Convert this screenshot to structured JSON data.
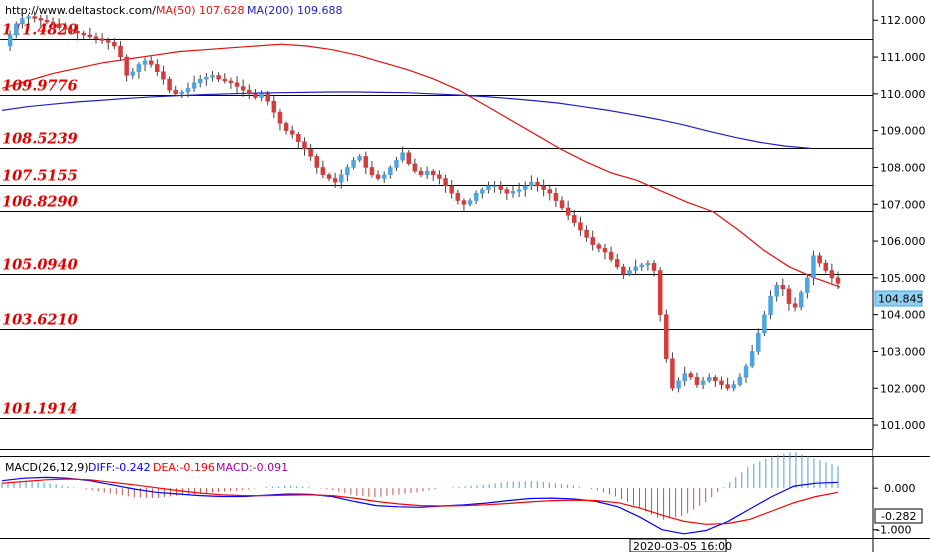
{
  "source_url": "http://www.deltastock.com/",
  "indicators": {
    "ma50_label": "MA(50)",
    "ma50_value": "107.628",
    "ma200_label": "MA(200)",
    "ma200_value": "109.688"
  },
  "macd_header": {
    "name": "MACD(26,12,9)",
    "diff": "DIFF:-0.242",
    "dea": "DEA:-0.196",
    "macd": "MACD:-0.091"
  },
  "current_price_label": "104.845",
  "time_label": "2020-03-05 16:00",
  "colors": {
    "up": "#4fa3e0",
    "down": "#d43c3c",
    "ma50": "#e01010",
    "ma200": "#2020c8",
    "level_text": "#e00000",
    "macd_hist": "#4a9fd8",
    "macd_hist_neg": "#c85050",
    "diff_line": "#0000ff",
    "dea_line": "#ff0000"
  },
  "chart_data": [
    {
      "type": "candlestick",
      "price_axis": {
        "ylim": [
          100.35,
          112.55
        ],
        "ticks": [
          "101.000",
          "102.000",
          "103.000",
          "104.000",
          "105.000",
          "106.000",
          "107.000",
          "108.000",
          "109.000",
          "110.000",
          "111.000",
          "112.000"
        ]
      },
      "levels": [
        {
          "value": 111.482,
          "label": "111.4820"
        },
        {
          "value": 109.9776,
          "label": "109.9776"
        },
        {
          "value": 108.5239,
          "label": "108.5239"
        },
        {
          "value": 107.5155,
          "label": "107.5155"
        },
        {
          "value": 106.829,
          "label": "106.8290"
        },
        {
          "value": 105.094,
          "label": "105.0940"
        },
        {
          "value": 103.621,
          "label": "103.6210"
        },
        {
          "value": 101.1914,
          "label": "101.1914"
        }
      ],
      "close_path": [
        111.3,
        111.6,
        111.9,
        112.05,
        112.1,
        112.05,
        112.0,
        111.95,
        111.9,
        111.8,
        111.75,
        111.7,
        111.65,
        111.6,
        111.55,
        111.5,
        111.45,
        111.4,
        111.3,
        111.0,
        110.5,
        110.6,
        110.8,
        110.9,
        110.8,
        110.6,
        110.4,
        110.1,
        110.0,
        110.05,
        110.15,
        110.3,
        110.4,
        110.45,
        110.5,
        110.4,
        110.35,
        110.3,
        110.2,
        110.1,
        110.0,
        109.9,
        110.0,
        109.8,
        109.5,
        109.2,
        109.0,
        108.9,
        108.7,
        108.5,
        108.3,
        108.0,
        107.8,
        107.7,
        107.6,
        107.8,
        108.0,
        108.2,
        108.3,
        108.0,
        107.8,
        107.7,
        107.8,
        108.0,
        108.2,
        108.4,
        108.1,
        107.9,
        107.8,
        107.9,
        107.8,
        107.7,
        107.5,
        107.3,
        107.1,
        107.0,
        107.1,
        107.3,
        107.4,
        107.5,
        107.5,
        107.4,
        107.3,
        107.35,
        107.4,
        107.5,
        107.6,
        107.5,
        107.4,
        107.3,
        107.1,
        106.9,
        106.7,
        106.5,
        106.3,
        106.1,
        105.9,
        105.8,
        105.7,
        105.5,
        105.3,
        105.1,
        105.2,
        105.3,
        105.35,
        105.4,
        105.2,
        104.0,
        102.8,
        102.0,
        102.2,
        102.4,
        102.3,
        102.1,
        102.2,
        102.3,
        102.2,
        102.1,
        102.0,
        102.1,
        102.3,
        102.6,
        103.0,
        103.5,
        104.0,
        104.5,
        104.8,
        104.7,
        104.3,
        104.2,
        104.6,
        105.0,
        105.6,
        105.4,
        105.2,
        105.0,
        104.85
      ],
      "series": [
        {
          "name": "MA(50)",
          "values_path": [
            110.15,
            110.35,
            110.55,
            110.7,
            110.85,
            110.95,
            111.05,
            111.15,
            111.2,
            111.25,
            111.3,
            111.35,
            111.3,
            111.2,
            111.05,
            110.85,
            110.65,
            110.4,
            110.1,
            109.7,
            109.3,
            108.9,
            108.5,
            108.15,
            107.85,
            107.65,
            107.35,
            107.05,
            106.8,
            106.3,
            105.75,
            105.3,
            105.0,
            104.75
          ]
        },
        {
          "name": "MA(200)",
          "values_path": [
            109.55,
            109.65,
            109.72,
            109.78,
            109.83,
            109.88,
            109.92,
            109.95,
            109.98,
            110.0,
            110.02,
            110.03,
            110.04,
            110.05,
            110.05,
            110.04,
            110.03,
            110.0,
            109.97,
            109.93,
            109.88,
            109.82,
            109.75,
            109.65,
            109.55,
            109.43,
            109.3,
            109.15,
            108.98,
            108.82,
            108.68,
            108.58,
            108.52
          ]
        }
      ]
    },
    {
      "type": "macd",
      "ylim": [
        -1.2,
        0.75
      ],
      "ticks": [
        "0.000",
        "-1.000"
      ],
      "current_value_label": "-0.282",
      "series": [
        {
          "name": "DIFF",
          "values_path": [
            0.18,
            0.24,
            0.26,
            0.24,
            0.18,
            0.08,
            -0.02,
            -0.1,
            -0.14,
            -0.18,
            -0.2,
            -0.2,
            -0.17,
            -0.14,
            -0.15,
            -0.2,
            -0.32,
            -0.42,
            -0.45,
            -0.46,
            -0.43,
            -0.4,
            -0.36,
            -0.3,
            -0.25,
            -0.24,
            -0.26,
            -0.32,
            -0.45,
            -0.7,
            -1.0,
            -1.1,
            -1.02,
            -0.8,
            -0.5,
            -0.2,
            0.05,
            0.12,
            0.14
          ]
        },
        {
          "name": "DEA",
          "values_path": [
            0.12,
            0.16,
            0.2,
            0.22,
            0.2,
            0.14,
            0.08,
            0.01,
            -0.06,
            -0.12,
            -0.16,
            -0.18,
            -0.18,
            -0.17,
            -0.16,
            -0.18,
            -0.24,
            -0.32,
            -0.38,
            -0.42,
            -0.43,
            -0.42,
            -0.4,
            -0.37,
            -0.33,
            -0.3,
            -0.29,
            -0.3,
            -0.35,
            -0.48,
            -0.65,
            -0.8,
            -0.87,
            -0.85,
            -0.75,
            -0.55,
            -0.35,
            -0.2,
            -0.1
          ]
        }
      ]
    }
  ]
}
